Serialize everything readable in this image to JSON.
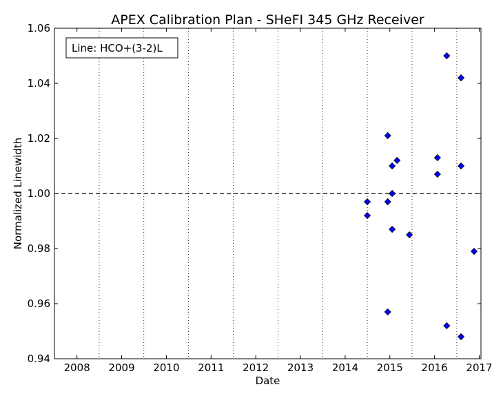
{
  "chart_data": {
    "type": "scatter",
    "title": "APEX Calibration Plan - SHeFI 345 GHz Receiver",
    "xlabel": "Date",
    "ylabel": "Normalized Linewidth",
    "legend_text": "Line: HCO+(3-2)L",
    "legend_position": "top-left",
    "xlim": [
      "2007-07-01",
      "2017-01-15"
    ],
    "ylim": [
      0.94,
      1.06
    ],
    "x_ticks": [
      {
        "date": "2008-01-01",
        "label": "2008"
      },
      {
        "date": "2009-01-01",
        "label": "2009"
      },
      {
        "date": "2010-01-01",
        "label": "2010"
      },
      {
        "date": "2011-01-01",
        "label": "2011"
      },
      {
        "date": "2012-01-01",
        "label": "2012"
      },
      {
        "date": "2013-01-01",
        "label": "2013"
      },
      {
        "date": "2014-01-01",
        "label": "2014"
      },
      {
        "date": "2015-01-01",
        "label": "2015"
      },
      {
        "date": "2016-01-01",
        "label": "2016"
      },
      {
        "date": "2017-01-01",
        "label": "2017"
      }
    ],
    "y_ticks": [
      "0.94",
      "0.96",
      "0.98",
      "1.00",
      "1.02",
      "1.04",
      "1.06"
    ],
    "vertical_gridlines_dates": [
      "2008-07-01",
      "2009-07-01",
      "2010-07-01",
      "2011-07-01",
      "2012-07-01",
      "2013-07-01",
      "2014-07-01",
      "2015-07-01",
      "2016-07-01"
    ],
    "reference_line": 1.0,
    "marker_color": "#0000ff",
    "series": [
      {
        "points": [
          {
            "date": "2014-07-01",
            "y": 0.997
          },
          {
            "date": "2014-07-01",
            "y": 0.992
          },
          {
            "date": "2014-12-15",
            "y": 1.021
          },
          {
            "date": "2014-12-15",
            "y": 0.997
          },
          {
            "date": "2014-12-15",
            "y": 0.957
          },
          {
            "date": "2015-01-20",
            "y": 1.01
          },
          {
            "date": "2015-01-20",
            "y": 1.0
          },
          {
            "date": "2015-01-20",
            "y": 0.987
          },
          {
            "date": "2015-03-01",
            "y": 1.012
          },
          {
            "date": "2015-06-10",
            "y": 0.985
          },
          {
            "date": "2016-01-25",
            "y": 1.013
          },
          {
            "date": "2016-01-25",
            "y": 1.007
          },
          {
            "date": "2016-04-10",
            "y": 1.05
          },
          {
            "date": "2016-04-10",
            "y": 0.952
          },
          {
            "date": "2016-08-05",
            "y": 1.042
          },
          {
            "date": "2016-08-05",
            "y": 1.01
          },
          {
            "date": "2016-08-05",
            "y": 0.948
          },
          {
            "date": "2016-11-20",
            "y": 0.979
          }
        ]
      }
    ]
  }
}
